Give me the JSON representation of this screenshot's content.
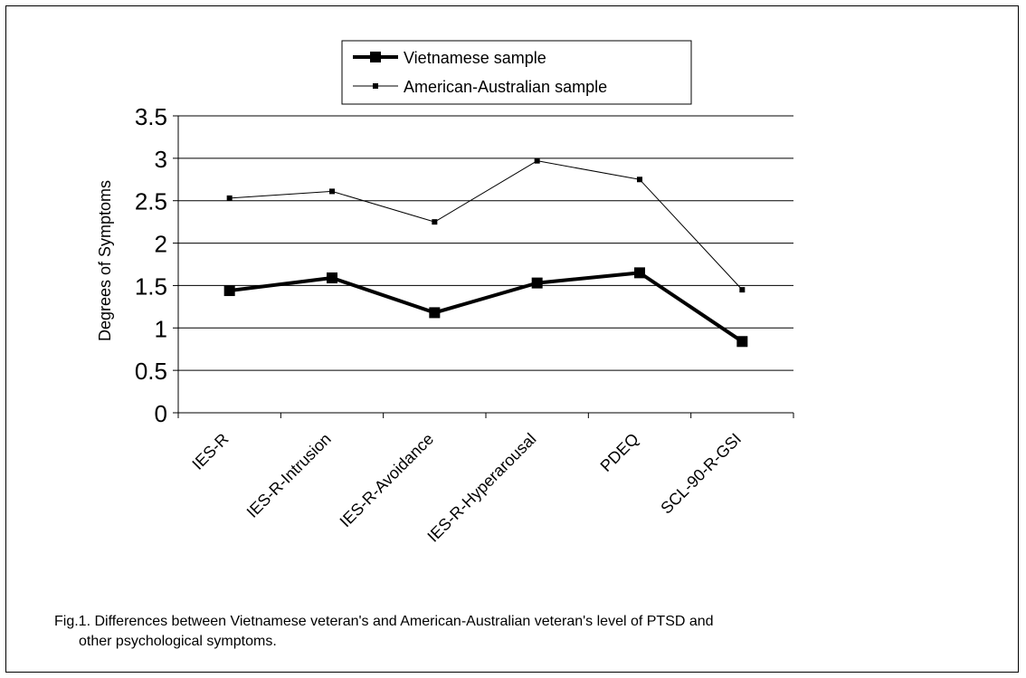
{
  "chart_data": {
    "type": "line",
    "categories": [
      "IES-R",
      "IES-R-Intrusion",
      "IES-R-Avoidance",
      "IES-R-Hyperarousal",
      "PDEQ",
      "SCL-90-R-GSI"
    ],
    "series": [
      {
        "name": "Vietnamese sample",
        "values": [
          1.44,
          1.59,
          1.18,
          1.53,
          1.65,
          0.84
        ],
        "color": "#000000",
        "style": "thick"
      },
      {
        "name": "American-Australian sample",
        "values": [
          2.53,
          2.61,
          2.25,
          2.97,
          2.75,
          1.45
        ],
        "color": "#000000",
        "style": "thin"
      }
    ],
    "ylabel": "Degrees of Symptoms",
    "yticks": [
      "0",
      "0.5",
      "1",
      "1.5",
      "2",
      "2.5",
      "3",
      "3.5"
    ],
    "ylim": [
      0,
      3.5
    ],
    "grid": true,
    "legend": "top-center"
  },
  "caption": {
    "line1": "Fig.1. Differences between Vietnamese veteran's and American-Australian veteran's level of PTSD and",
    "line2": "other psychological symptoms."
  }
}
